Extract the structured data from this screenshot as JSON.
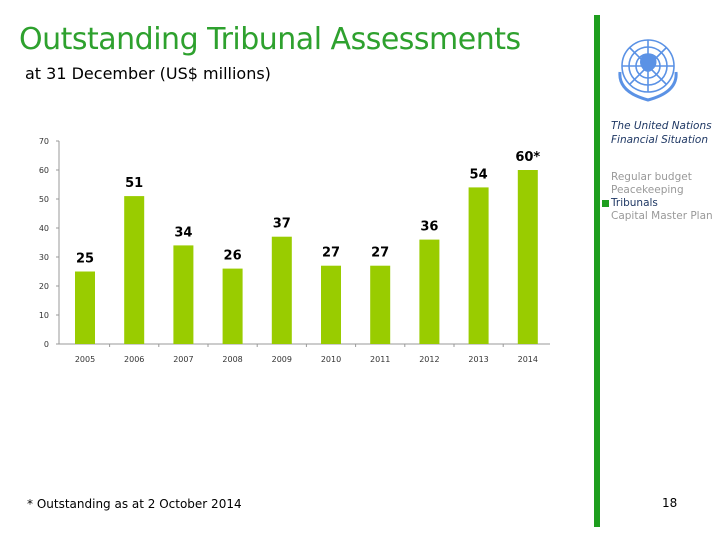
{
  "title": "Outstanding Tribunal Assessments",
  "subtitle": "at 31 December (US$ millions)",
  "sidebar": {
    "org_line1": "The United Nations",
    "org_line2": "Financial Situation",
    "items": [
      {
        "label": "Regular budget",
        "active": false
      },
      {
        "label": "Peacekeeping",
        "active": false
      },
      {
        "label": "Tribunals",
        "active": true
      },
      {
        "label": "Capital Master Plan",
        "active": false
      }
    ],
    "logo": "un-emblem-icon"
  },
  "footnote": "* Outstanding as at 2 October 2014",
  "page_number": "18",
  "colors": {
    "bar": "#99cc00",
    "accent": "#1e9e1e",
    "title": "#2ea12e"
  },
  "chart_data": {
    "type": "bar",
    "categories": [
      "2005",
      "2006",
      "2007",
      "2008",
      "2009",
      "2010",
      "2011",
      "2012",
      "2013",
      "2014"
    ],
    "values": [
      25,
      51,
      34,
      26,
      37,
      27,
      27,
      36,
      54,
      60
    ],
    "data_labels": [
      "25",
      "51",
      "34",
      "26",
      "37",
      "27",
      "27",
      "36",
      "54",
      "60*"
    ],
    "ylim": [
      0,
      70
    ],
    "yticks": [
      "0",
      "10",
      "20",
      "30",
      "40",
      "50",
      "60",
      "70"
    ],
    "grid": false,
    "title": "",
    "xlabel": "",
    "ylabel": ""
  }
}
